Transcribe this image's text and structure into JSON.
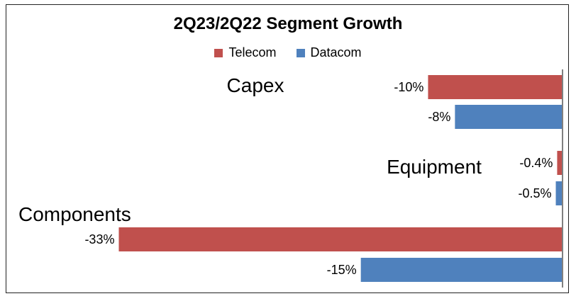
{
  "chart_data": {
    "type": "bar",
    "orientation": "horizontal",
    "title": "2Q23/2Q22 Segment Growth",
    "categories": [
      "Capex",
      "Equipment",
      "Components"
    ],
    "series": [
      {
        "name": "Telecom",
        "color": "#C0504D",
        "values": [
          -10,
          -0.4,
          -33
        ],
        "labels": [
          "-10%",
          "-0.4%",
          "-33%"
        ]
      },
      {
        "name": "Datacom",
        "color": "#4F81BD",
        "values": [
          -8,
          -0.5,
          -15
        ],
        "labels": [
          "-8%",
          "-0.5%",
          "-15%"
        ]
      }
    ],
    "xlim": [
      -33.5,
      0
    ],
    "grid": false,
    "legend_position": "top-center"
  }
}
